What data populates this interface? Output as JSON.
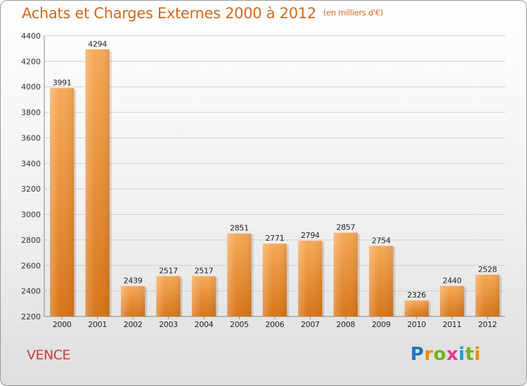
{
  "title": "Achats et Charges Externes 2000 à 2012",
  "unit_note": "(en milliers d'€)",
  "location": "VENCE",
  "brand": "Proxiti",
  "colors": {
    "bar_light": "#f7a957",
    "bar_dark": "#d87518",
    "title": "#d2691e",
    "location": "#cc3a3a"
  },
  "chart_data": {
    "type": "bar",
    "categories": [
      "2000",
      "2001",
      "2002",
      "2003",
      "2004",
      "2005",
      "2006",
      "2007",
      "2008",
      "2009",
      "2010",
      "2011",
      "2012"
    ],
    "values": [
      3991,
      4294,
      2439,
      2517,
      2517,
      2851,
      2771,
      2794,
      2857,
      2754,
      2326,
      2440,
      2528
    ],
    "ylim": [
      2200,
      4400
    ],
    "yticks": [
      2200,
      2400,
      2600,
      2800,
      3000,
      3200,
      3400,
      3600,
      3800,
      4000,
      4200,
      4400
    ],
    "grid": true
  }
}
